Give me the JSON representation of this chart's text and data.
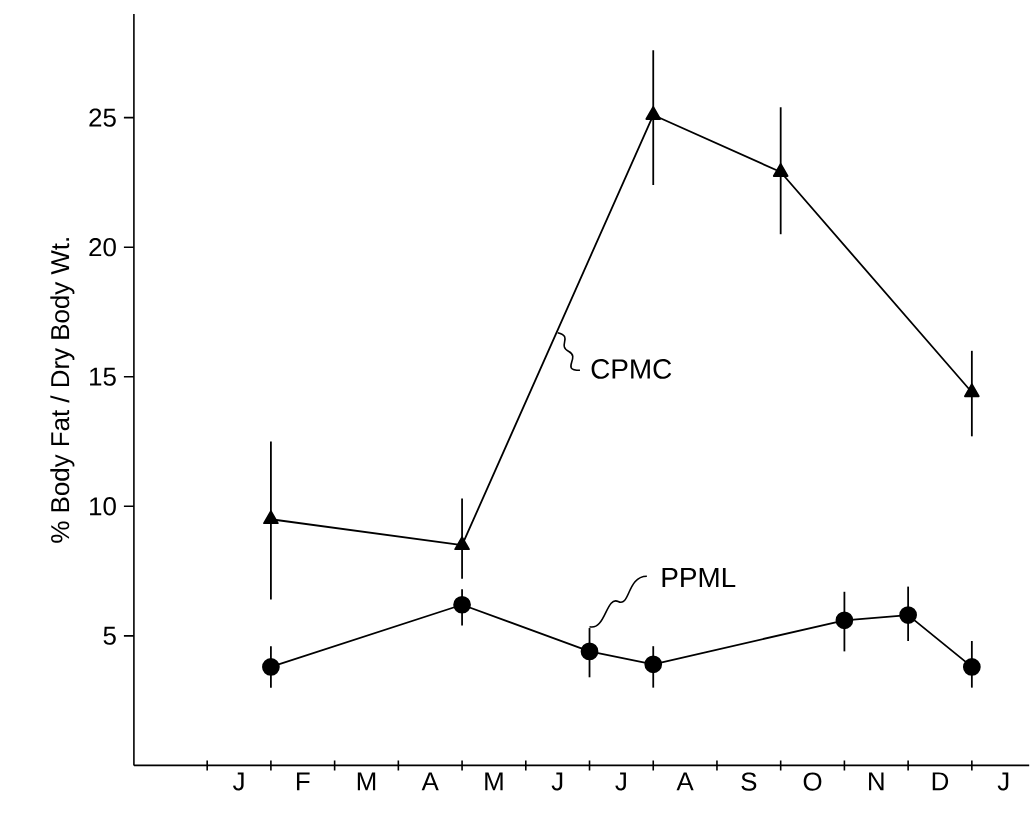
{
  "chart_data": {
    "type": "line",
    "ylabel": "% Body Fat / Dry Body Wt.",
    "categories": [
      null,
      "J",
      null,
      "F",
      null,
      "M",
      null,
      "A",
      null,
      "M",
      null,
      "J",
      null,
      "J",
      null,
      "A",
      null,
      "S",
      null,
      "O",
      null,
      "N",
      null,
      "D",
      null,
      "J"
    ],
    "ylim": [
      0,
      29
    ],
    "yticks": [
      5,
      10,
      15,
      20,
      25
    ],
    "grid": false,
    "line_style": "solid",
    "series": [
      {
        "name": "CPMC",
        "color": "#000000",
        "marker": "triangle",
        "values": [
          null,
          null,
          9.5,
          null,
          null,
          null,
          null,
          null,
          8.5,
          null,
          null,
          null,
          null,
          null,
          25.1,
          null,
          null,
          null,
          22.9,
          null,
          null,
          null,
          null,
          null,
          14.4,
          null
        ],
        "errors": [
          null,
          null,
          [
            6.4,
            12.5
          ],
          null,
          null,
          null,
          null,
          null,
          [
            7.2,
            10.3
          ],
          null,
          null,
          null,
          null,
          null,
          [
            22.4,
            27.6
          ],
          null,
          null,
          null,
          [
            20.5,
            25.4
          ],
          null,
          null,
          null,
          null,
          null,
          [
            12.7,
            16.0
          ],
          null
        ]
      },
      {
        "name": "PPML",
        "color": "#000000",
        "marker": "circle",
        "values": [
          null,
          null,
          3.8,
          null,
          null,
          null,
          null,
          null,
          6.2,
          null,
          null,
          null,
          4.4,
          null,
          3.9,
          null,
          null,
          null,
          null,
          null,
          5.6,
          null,
          5.8,
          null,
          3.8,
          null
        ],
        "errors": [
          null,
          null,
          [
            3.0,
            4.6
          ],
          null,
          null,
          null,
          null,
          null,
          [
            5.4,
            6.8
          ],
          null,
          null,
          null,
          [
            3.4,
            5.3
          ],
          null,
          [
            3.0,
            4.6
          ],
          null,
          null,
          null,
          null,
          null,
          [
            4.4,
            6.7
          ],
          null,
          [
            4.8,
            6.9
          ],
          null,
          [
            3.0,
            4.8
          ],
          null
        ]
      }
    ]
  }
}
